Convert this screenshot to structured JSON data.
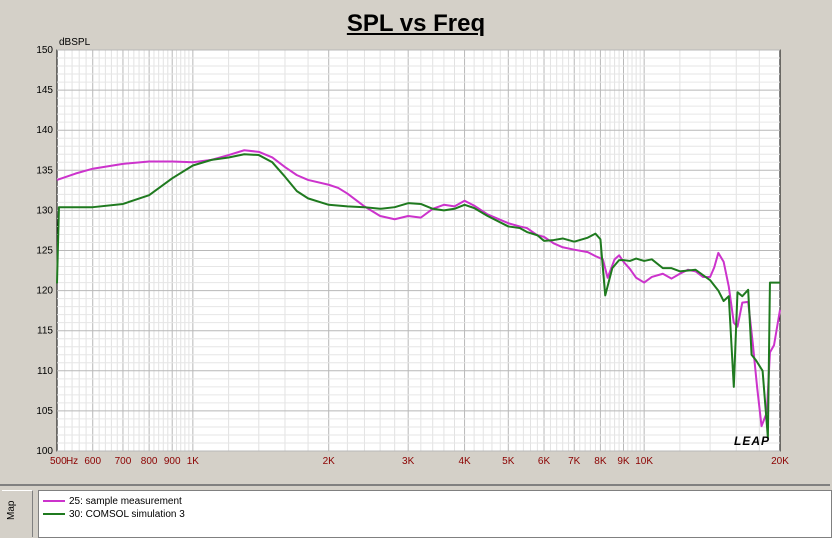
{
  "window": {
    "title": "SPL vs Freq",
    "map_tab": "Map",
    "logo": "LEAP"
  },
  "colors": {
    "series_0": "#cc33cc",
    "series_1": "#1f7a1f",
    "axis_labels": "#8b0000",
    "grid": "#d0d0d0"
  },
  "chart_data": {
    "type": "line",
    "title": "SPL vs Freq",
    "ylabel": "dBSPL",
    "x_scale": "log",
    "xlim": [
      500,
      20000
    ],
    "ylim": [
      100,
      150
    ],
    "y_ticks": [
      100,
      105,
      110,
      115,
      120,
      125,
      130,
      135,
      140,
      145,
      150
    ],
    "x_tick_labels": [
      {
        "value": 500,
        "label": "500"
      },
      {
        "value": 540,
        "label": "Hz"
      },
      {
        "value": 600,
        "label": "600"
      },
      {
        "value": 700,
        "label": "700"
      },
      {
        "value": 800,
        "label": "800"
      },
      {
        "value": 900,
        "label": "900"
      },
      {
        "value": 1000,
        "label": "1K"
      },
      {
        "value": 2000,
        "label": "2K"
      },
      {
        "value": 3000,
        "label": "3K"
      },
      {
        "value": 4000,
        "label": "4K"
      },
      {
        "value": 5000,
        "label": "5K"
      },
      {
        "value": 6000,
        "label": "6K"
      },
      {
        "value": 7000,
        "label": "7K"
      },
      {
        "value": 8000,
        "label": "8K"
      },
      {
        "value": 9000,
        "label": "9K"
      },
      {
        "value": 10000,
        "label": "10K"
      },
      {
        "value": 20000,
        "label": "20K"
      }
    ],
    "grid": true,
    "legend_position": "bottom",
    "series": [
      {
        "name": "25: sample measurement",
        "points": [
          [
            500,
            133.8
          ],
          [
            550,
            134.6
          ],
          [
            600,
            135.2
          ],
          [
            700,
            135.8
          ],
          [
            800,
            136.1
          ],
          [
            900,
            136.1
          ],
          [
            1000,
            136.0
          ],
          [
            1100,
            136.3
          ],
          [
            1200,
            136.9
          ],
          [
            1300,
            137.5
          ],
          [
            1400,
            137.3
          ],
          [
            1500,
            136.6
          ],
          [
            1600,
            135.4
          ],
          [
            1700,
            134.4
          ],
          [
            1800,
            133.8
          ],
          [
            2000,
            133.2
          ],
          [
            2100,
            132.8
          ],
          [
            2200,
            132.1
          ],
          [
            2400,
            130.5
          ],
          [
            2600,
            129.3
          ],
          [
            2800,
            128.9
          ],
          [
            3000,
            129.3
          ],
          [
            3200,
            129.1
          ],
          [
            3400,
            130.2
          ],
          [
            3600,
            130.7
          ],
          [
            3800,
            130.5
          ],
          [
            4000,
            131.2
          ],
          [
            4200,
            130.6
          ],
          [
            4500,
            129.5
          ],
          [
            5000,
            128.4
          ],
          [
            5300,
            128.0
          ],
          [
            5500,
            127.8
          ],
          [
            5800,
            126.9
          ],
          [
            6000,
            126.7
          ],
          [
            6300,
            125.9
          ],
          [
            6600,
            125.4
          ],
          [
            7000,
            125.1
          ],
          [
            7500,
            124.8
          ],
          [
            7800,
            124.3
          ],
          [
            8100,
            123.9
          ],
          [
            8300,
            121.6
          ],
          [
            8600,
            123.9
          ],
          [
            8800,
            124.4
          ],
          [
            9000,
            123.6
          ],
          [
            9300,
            122.7
          ],
          [
            9600,
            121.6
          ],
          [
            10000,
            121.0
          ],
          [
            10400,
            121.7
          ],
          [
            11000,
            122.1
          ],
          [
            11500,
            121.5
          ],
          [
            12000,
            122.1
          ],
          [
            12500,
            122.6
          ],
          [
            13000,
            122.4
          ],
          [
            13500,
            121.7
          ],
          [
            14000,
            121.7
          ],
          [
            14300,
            122.9
          ],
          [
            14600,
            124.7
          ],
          [
            15000,
            123.6
          ],
          [
            15400,
            120.5
          ],
          [
            15800,
            116.0
          ],
          [
            16100,
            115.5
          ],
          [
            16500,
            118.5
          ],
          [
            17000,
            118.6
          ],
          [
            17400,
            113.5
          ],
          [
            17800,
            107.9
          ],
          [
            18200,
            103.1
          ],
          [
            18700,
            104.8
          ],
          [
            19000,
            112.3
          ],
          [
            19400,
            113.2
          ],
          [
            20000,
            117.6
          ]
        ]
      },
      {
        "name": "30: COMSOL simulation 3",
        "points": [
          [
            500,
            120.9
          ],
          [
            505,
            130.4
          ],
          [
            550,
            130.4
          ],
          [
            600,
            130.4
          ],
          [
            700,
            130.8
          ],
          [
            800,
            131.9
          ],
          [
            900,
            134.0
          ],
          [
            1000,
            135.6
          ],
          [
            1100,
            136.3
          ],
          [
            1200,
            136.6
          ],
          [
            1300,
            137.0
          ],
          [
            1400,
            136.9
          ],
          [
            1500,
            136.0
          ],
          [
            1600,
            134.2
          ],
          [
            1700,
            132.4
          ],
          [
            1800,
            131.5
          ],
          [
            2000,
            130.7
          ],
          [
            2200,
            130.5
          ],
          [
            2400,
            130.4
          ],
          [
            2600,
            130.2
          ],
          [
            2800,
            130.4
          ],
          [
            3000,
            130.9
          ],
          [
            3200,
            130.8
          ],
          [
            3400,
            130.2
          ],
          [
            3600,
            130.0
          ],
          [
            3800,
            130.2
          ],
          [
            4000,
            130.7
          ],
          [
            4200,
            130.3
          ],
          [
            4500,
            129.3
          ],
          [
            5000,
            128.0
          ],
          [
            5300,
            127.8
          ],
          [
            5500,
            127.3
          ],
          [
            5800,
            126.9
          ],
          [
            6000,
            126.2
          ],
          [
            6300,
            126.3
          ],
          [
            6600,
            126.5
          ],
          [
            7000,
            126.1
          ],
          [
            7500,
            126.6
          ],
          [
            7800,
            127.1
          ],
          [
            8000,
            126.4
          ],
          [
            8200,
            119.4
          ],
          [
            8500,
            122.8
          ],
          [
            8800,
            123.8
          ],
          [
            9000,
            123.8
          ],
          [
            9300,
            123.7
          ],
          [
            9600,
            124.0
          ],
          [
            10000,
            123.7
          ],
          [
            10400,
            123.9
          ],
          [
            11000,
            122.8
          ],
          [
            11500,
            122.8
          ],
          [
            12000,
            122.4
          ],
          [
            13000,
            122.6
          ],
          [
            14000,
            121.3
          ],
          [
            14600,
            120.0
          ],
          [
            15000,
            118.7
          ],
          [
            15400,
            119.3
          ],
          [
            15800,
            108.0
          ],
          [
            16100,
            119.8
          ],
          [
            16500,
            119.3
          ],
          [
            17000,
            120.1
          ],
          [
            17300,
            112.0
          ],
          [
            17700,
            111.3
          ],
          [
            18300,
            110.0
          ],
          [
            18800,
            101.7
          ],
          [
            19000,
            121.0
          ],
          [
            20000,
            121.0
          ]
        ]
      }
    ]
  }
}
